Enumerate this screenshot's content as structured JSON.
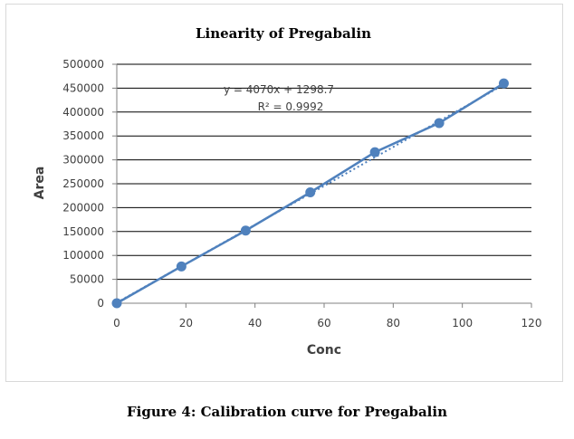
{
  "chart_data": {
    "type": "scatter",
    "title": "Linearity of Pregabalin",
    "xlabel": "Conc",
    "ylabel": "Area",
    "xlim": [
      0,
      120
    ],
    "ylim": [
      0,
      500000
    ],
    "xticks": [
      0,
      20,
      40,
      60,
      80,
      100,
      120
    ],
    "yticks": [
      0,
      50000,
      100000,
      150000,
      200000,
      250000,
      300000,
      350000,
      400000,
      450000,
      500000
    ],
    "grid": "horizontal",
    "series": [
      {
        "x": [
          0,
          18.7,
          37.3,
          56.0,
          74.7,
          93.3,
          112.0
        ],
        "y": [
          0,
          77000,
          152000,
          232000,
          316000,
          377000,
          460000
        ],
        "color": "#4f81bd"
      }
    ],
    "trendline": {
      "slope": 4070,
      "intercept": 1298.7,
      "equation": "y = 4070x + 1298.7",
      "r2_label": "R² = 0.9992",
      "style": "dotted"
    }
  },
  "caption": "Figure 4: Calibration curve for Pregabalin"
}
